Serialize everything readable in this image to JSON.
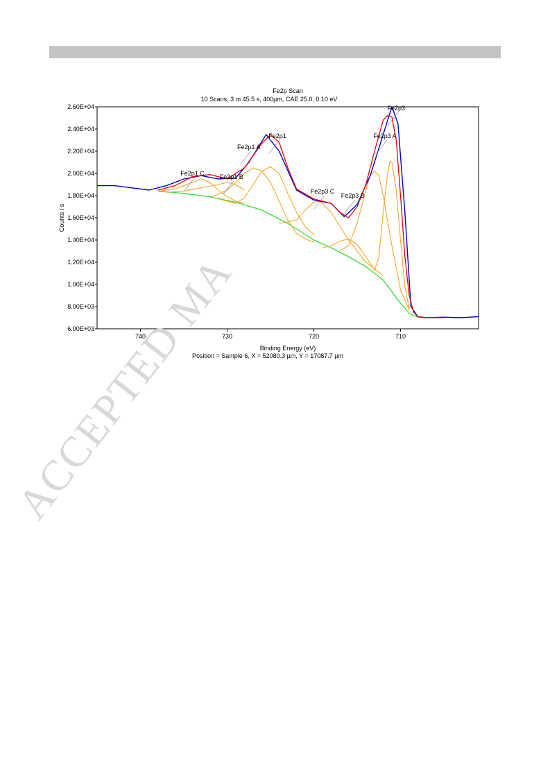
{
  "watermark": "ACCEPTED MA",
  "chart_data": {
    "type": "line",
    "title": "Fe2p Scan",
    "subtitle": "10 Scans,  3 m 45.5 s,  400µm,  CAE 25.0,  0.10 eV",
    "xlabel": "Binding Energy (eV)",
    "ylabel": "Counts / s",
    "footer": "Position = Sample 6, X = 52080.3 µm, Y = 17087.7 µm",
    "xlim": [
      745,
      701
    ],
    "ylim": [
      6000,
      26000
    ],
    "x_reversed": true,
    "x_ticks": [
      740,
      730,
      720,
      710
    ],
    "y_ticks": [
      6000,
      8000,
      10000,
      12000,
      14000,
      16000,
      18000,
      20000,
      22000,
      24000,
      26000
    ],
    "y_tick_labels": [
      "6.00E+03",
      "8.00E+03",
      "1.00E+04",
      "1.20E+04",
      "1.40E+04",
      "1.60E+04",
      "1.80E+04",
      "2.00E+04",
      "2.20E+04",
      "2.40E+04",
      "2.60E+04"
    ],
    "colors": {
      "raw": "#0000cc",
      "fit_envelope": "#ee0000",
      "peaks": "#f5a623",
      "background": "#33dd33"
    },
    "peak_labels": [
      {
        "text": "Fe2p1 C",
        "x": 734,
        "y": 19800
      },
      {
        "text": "Fe2p1 B",
        "x": 729.5,
        "y": 19500
      },
      {
        "text": "Fe2p1 A",
        "x": 727.5,
        "y": 22200
      },
      {
        "text": "Fe2p1",
        "x": 724.2,
        "y": 23200
      },
      {
        "text": "Fe2p3 C",
        "x": 719,
        "y": 18200
      },
      {
        "text": "Fe2p3 B",
        "x": 715.5,
        "y": 17800
      },
      {
        "text": "Fe2p3 A",
        "x": 711.8,
        "y": 23200
      },
      {
        "text": "Fe2p3",
        "x": 710.5,
        "y": 25700
      }
    ],
    "series": [
      {
        "x": [
          745,
          743,
          741,
          739,
          737,
          735,
          733,
          731,
          729,
          727.5,
          725.5,
          724,
          722,
          720,
          718,
          716.5,
          715,
          713.5,
          712,
          711,
          710.3,
          709.5,
          708.8,
          708,
          707,
          705,
          703,
          701
        ],
        "values": [
          18900,
          18900,
          18700,
          18500,
          18900,
          19500,
          19800,
          19500,
          19600,
          21000,
          23500,
          22000,
          18500,
          17600,
          17300,
          16100,
          17200,
          19800,
          23500,
          26000,
          24500,
          16500,
          8000,
          7100,
          7000,
          7050,
          7000,
          7100
        ]
      },
      {
        "x": [
          738,
          736,
          734,
          732,
          730,
          728,
          726,
          725,
          724,
          723,
          722,
          720,
          718,
          717,
          716,
          715,
          714,
          713,
          712,
          711.5,
          711,
          710.5,
          710,
          709.5,
          709,
          708.5,
          708,
          707,
          705
        ],
        "values": [
          18500,
          18900,
          19700,
          19900,
          19500,
          20500,
          22700,
          23500,
          22800,
          20500,
          18600,
          17700,
          17300,
          16500,
          16000,
          17000,
          19000,
          22000,
          24800,
          25200,
          25100,
          23000,
          18000,
          12500,
          9000,
          7500,
          7100,
          7000,
          7000
        ]
      },
      {
        "x": [
          738,
          735,
          732,
          729,
          726,
          723,
          720,
          718,
          716,
          714,
          712,
          710,
          709,
          708,
          707
        ],
        "values": [
          18400,
          18200,
          17900,
          17400,
          16700,
          15500,
          14000,
          13300,
          12500,
          11600,
          10400,
          8300,
          7400,
          7050,
          7000
        ]
      },
      {
        "x": [
          738,
          736,
          734,
          733,
          732,
          731,
          730,
          729,
          728
        ],
        "values": [
          18400,
          18600,
          19200,
          19500,
          19200,
          18500,
          17900,
          17500,
          17300
        ]
      },
      {
        "x": [
          737,
          735,
          733,
          731,
          730,
          729,
          728
        ],
        "values": [
          18300,
          18400,
          18700,
          19000,
          19200,
          19000,
          18500
        ]
      },
      {
        "x": [
          732,
          730,
          729,
          728,
          727,
          726,
          725,
          724,
          723,
          722,
          721,
          720
        ],
        "values": [
          17800,
          18500,
          19200,
          20000,
          20500,
          20200,
          19200,
          17500,
          15800,
          14600,
          14100,
          13800
        ]
      },
      {
        "x": [
          731,
          729,
          728,
          727,
          726,
          725,
          724,
          723,
          722,
          721,
          720
        ],
        "values": [
          17700,
          17300,
          17800,
          19000,
          20200,
          20600,
          20000,
          18200,
          16500,
          15200,
          14500
        ]
      },
      {
        "x": [
          724,
          722,
          721,
          720,
          719.5,
          719,
          718,
          716,
          714,
          712
        ],
        "values": [
          15500,
          15800,
          16700,
          17400,
          17500,
          17300,
          16500,
          14000,
          12000,
          10800
        ]
      },
      {
        "x": [
          719,
          718,
          717,
          716,
          715,
          714,
          713
        ],
        "values": [
          13300,
          13500,
          13900,
          14100,
          13600,
          12500,
          11300
        ]
      },
      {
        "x": [
          717,
          716,
          715,
          714,
          713.5,
          713,
          712.5,
          712,
          711,
          710,
          709
        ],
        "values": [
          13000,
          13500,
          15500,
          18500,
          19800,
          20200,
          19800,
          18000,
          13500,
          9500,
          7700
        ]
      },
      {
        "x": [
          713,
          712.5,
          712,
          711.5,
          711.2,
          711,
          710.5,
          710,
          709.5,
          709
        ],
        "values": [
          11200,
          12500,
          16500,
          20000,
          21100,
          21000,
          18500,
          14000,
          9800,
          7800
        ]
      }
    ]
  }
}
